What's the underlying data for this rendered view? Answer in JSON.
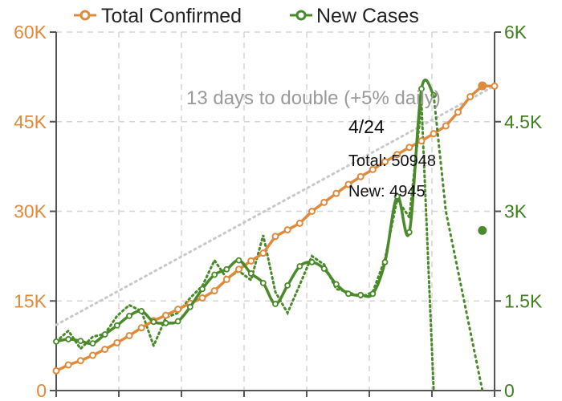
{
  "colors": {
    "total": "#e08a3c",
    "new": "#4a8a2a",
    "trend": "#c9c9c9",
    "grid": "#d6d6d6",
    "axis": "#555555"
  },
  "chart_data": {
    "type": "line",
    "title": "",
    "legend": {
      "position": "top",
      "entries": [
        "Total Confirmed",
        "New Cases"
      ]
    },
    "grid": true,
    "x": {
      "label": "",
      "ticks_visible": false,
      "start_index": 0,
      "end_index": 36
    },
    "y_left": {
      "label": "",
      "range": [
        0,
        60000
      ],
      "ticks": [
        0,
        15000,
        30000,
        45000,
        60000
      ],
      "tick_labels": [
        "0",
        "15K",
        "30K",
        "45K",
        "60K"
      ]
    },
    "y_right": {
      "label": "",
      "range": [
        0,
        6000
      ],
      "ticks": [
        0,
        1500,
        3000,
        4500,
        6000
      ],
      "tick_labels": [
        "0",
        "1.5K",
        "3K",
        "4.5K",
        "6K"
      ]
    },
    "series": [
      {
        "name": "Total Confirmed",
        "axis": "left",
        "style": "solid-markers",
        "x": [
          0,
          1,
          2,
          3,
          4,
          5,
          6,
          7,
          8,
          9,
          10,
          11,
          12,
          13,
          14,
          15,
          16,
          17,
          18,
          19,
          20,
          21,
          22,
          23,
          24,
          25,
          26,
          27,
          28,
          29,
          30,
          31,
          32,
          33,
          34,
          35,
          36
        ],
        "values": [
          3300,
          4300,
          5000,
          5900,
          6900,
          8000,
          9200,
          10500,
          11700,
          12600,
          13600,
          14600,
          15500,
          16700,
          18600,
          20300,
          21700,
          23000,
          25800,
          26900,
          28000,
          30000,
          31500,
          33000,
          34500,
          35800,
          37000,
          38300,
          39500,
          40700,
          41800,
          43000,
          44300,
          46600,
          49200,
          51000,
          50948
        ]
      },
      {
        "name": "",
        "axis": "left",
        "style": "dotted",
        "x": [
          0,
          36
        ],
        "values": [
          11000,
          51000
        ]
      },
      {
        "name": "New Cases",
        "axis": "right",
        "style": "smoothed",
        "x": [
          0,
          1,
          2,
          3,
          4,
          5,
          6,
          7,
          8,
          9,
          10,
          11,
          12,
          13,
          14,
          15,
          16,
          17,
          18,
          19,
          20,
          21,
          22,
          23,
          24,
          25,
          26,
          27,
          28,
          29,
          30,
          31,
          32,
          33,
          34,
          35
        ],
        "values": [
          820,
          860,
          830,
          790,
          940,
          1090,
          1250,
          1330,
          1150,
          1130,
          1160,
          1400,
          1700,
          1940,
          2030,
          2180,
          1960,
          1800,
          1450,
          1760,
          2080,
          2150,
          2040,
          1780,
          1620,
          1600,
          1620,
          2150,
          3250,
          2650,
          5050,
          4945,
          3000,
          2000,
          1000,
          0
        ]
      },
      {
        "name": "",
        "axis": "right",
        "style": "dotted-raw",
        "x": [
          0,
          1,
          2,
          3,
          4,
          5,
          6,
          7,
          8,
          9,
          10,
          11,
          12,
          13,
          14,
          15,
          16,
          17,
          18,
          19,
          20,
          21,
          22,
          23,
          24,
          25,
          26,
          27,
          28,
          29,
          30,
          31
        ],
        "values": [
          820,
          1000,
          700,
          900,
          950,
          1250,
          1430,
          1330,
          750,
          1220,
          1300,
          1550,
          1750,
          2180,
          1880,
          2000,
          1850,
          2600,
          1650,
          1300,
          1770,
          2250,
          2110,
          1700,
          1650,
          1560,
          1650,
          2200,
          3200,
          2900,
          4800,
          0
        ]
      }
    ],
    "annotations": {
      "trend_label": "13 days to double (+5% daily)",
      "tooltip": {
        "date": "4/24",
        "total_label": "Total: 50948",
        "new_label": "New: 4945"
      }
    }
  }
}
